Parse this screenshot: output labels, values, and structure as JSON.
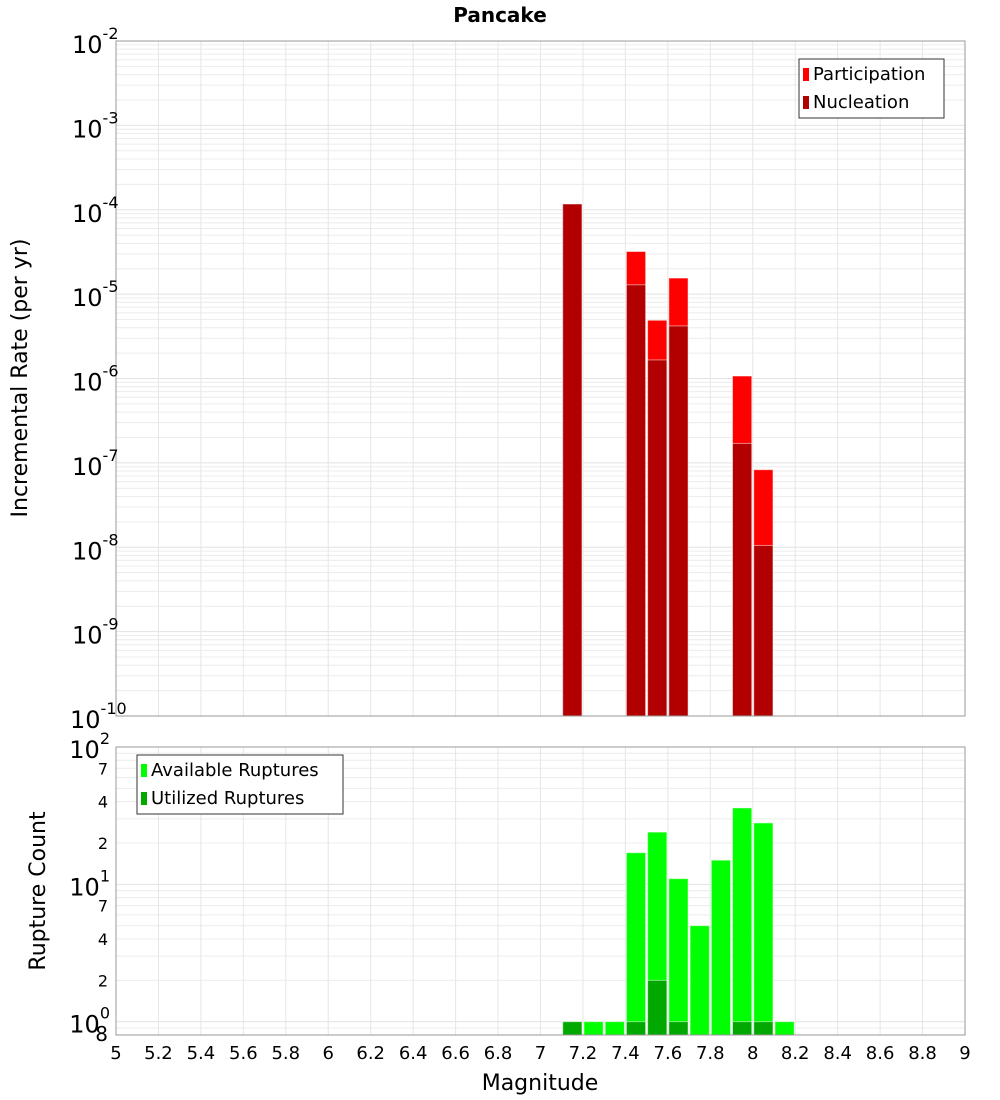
{
  "chart_data": [
    {
      "type": "bar",
      "title": "Pancake",
      "xlabel": "Magnitude",
      "ylabel": "Incremental Rate (per yr)",
      "yscale": "log",
      "ylim": [
        1e-10,
        0.01
      ],
      "xlim": [
        5,
        9
      ],
      "bar_width": 0.1,
      "x": [
        7.15,
        7.45,
        7.55,
        7.65,
        7.95,
        8.05
      ],
      "series": [
        {
          "name": "Participation",
          "color": "#ff0000",
          "values": [
            0.000117,
            3.2e-05,
            4.9e-06,
            1.55e-05,
            1.07e-06,
            8.3e-08
          ]
        },
        {
          "name": "Nucleation",
          "color": "#b20000",
          "values": [
            0.000117,
            1.29e-05,
            1.66e-06,
            4.2e-06,
            1.7e-07,
            1.05e-08
          ]
        }
      ],
      "y_ticks": [
        {
          "base": "10",
          "exp": "-2",
          "value": 0.01
        },
        {
          "base": "10",
          "exp": "-3",
          "value": 0.001
        },
        {
          "base": "10",
          "exp": "-4",
          "value": 0.0001
        },
        {
          "base": "10",
          "exp": "-5",
          "value": 1e-05
        },
        {
          "base": "10",
          "exp": "-6",
          "value": 1e-06
        },
        {
          "base": "10",
          "exp": "-7",
          "value": 1e-07
        },
        {
          "base": "10",
          "exp": "-8",
          "value": 1e-08
        },
        {
          "base": "10",
          "exp": "-9",
          "value": 1e-09
        },
        {
          "base": "10",
          "exp": "-10",
          "value": 1e-10
        }
      ],
      "grid": true,
      "legend_position": "top-right"
    },
    {
      "type": "bar",
      "xlabel": "Magnitude",
      "ylabel": "Rupture Count",
      "yscale": "log",
      "ylim": [
        0.8,
        100
      ],
      "xlim": [
        5,
        9
      ],
      "bar_width": 0.1,
      "x": [
        7.15,
        7.25,
        7.35,
        7.45,
        7.55,
        7.65,
        7.75,
        7.85,
        7.95,
        8.05,
        8.15
      ],
      "series": [
        {
          "name": "Available Ruptures",
          "color": "#00ff00",
          "values": [
            1,
            1,
            1,
            17,
            24,
            11,
            5,
            15,
            36,
            28,
            1
          ]
        },
        {
          "name": "Utilized Ruptures",
          "color": "#00a800",
          "values": [
            1,
            0,
            0,
            1,
            2,
            1,
            0,
            0,
            1,
            1,
            0
          ]
        }
      ],
      "y_ticks": [
        {
          "base": "10",
          "exp": "2",
          "value": 100
        },
        {
          "base": "10",
          "exp": "1",
          "value": 10
        },
        {
          "base": "10",
          "exp": "0",
          "value": 1
        }
      ],
      "y_minor_labels": [
        {
          "label": "7",
          "value": 70
        },
        {
          "label": "4",
          "value": 40
        },
        {
          "label": "2",
          "value": 20
        },
        {
          "label": "7",
          "value": 7
        },
        {
          "label": "4",
          "value": 4
        },
        {
          "label": "2",
          "value": 2
        },
        {
          "label": "8",
          "value": 0.8
        }
      ],
      "grid": true,
      "legend_position": "top-left"
    }
  ],
  "x_ticks": [
    "5",
    "5.2",
    "5.4",
    "5.6",
    "5.8",
    "6",
    "6.2",
    "6.4",
    "6.6",
    "6.8",
    "7",
    "7.2",
    "7.4",
    "7.6",
    "7.8",
    "8",
    "8.2",
    "8.4",
    "8.6",
    "8.8",
    "9"
  ]
}
